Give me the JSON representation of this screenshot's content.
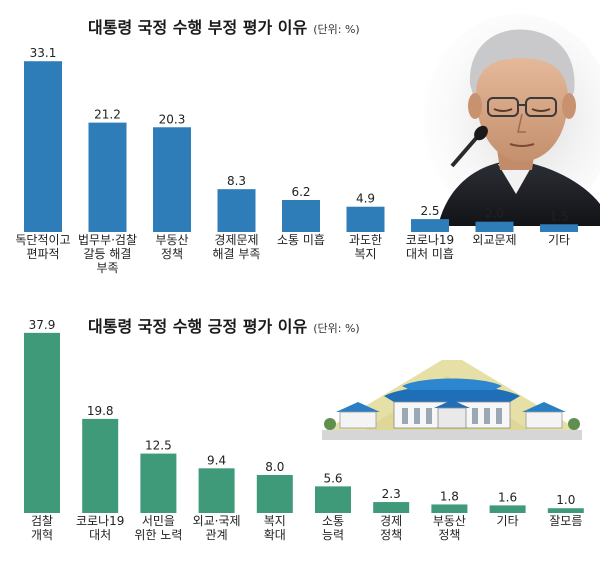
{
  "chart_data": [
    {
      "type": "bar",
      "title": "대통령 국정 수행 부정 평가 이유",
      "unit": "(단위: %)",
      "color": "#2e7cb8",
      "categories": [
        [
          "독단적이고",
          "편파적"
        ],
        [
          "법무부·검찰",
          "갈등 해결",
          "부족"
        ],
        [
          "부동산",
          "정책"
        ],
        [
          "경제문제",
          "해결 부족"
        ],
        [
          "소통 미흡"
        ],
        [
          "과도한",
          "복지"
        ],
        [
          "코로나19",
          "대처 미흡"
        ],
        [
          "외교문제"
        ],
        [
          "기타"
        ]
      ],
      "values": [
        33.1,
        21.2,
        20.3,
        8.3,
        6.2,
        4.9,
        2.5,
        2.0,
        1.5
      ],
      "value_labels": [
        "33.1",
        "21.2",
        "20.3",
        "8.3",
        "6.2",
        "4.9",
        "2.5",
        "2.0",
        "1.5"
      ],
      "ylim": [
        0,
        34.5
      ]
    },
    {
      "type": "bar",
      "title": "대통령 국정 수행 긍정 평가 이유",
      "unit": "(단위: %)",
      "color": "#3f9a7a",
      "categories": [
        [
          "검찰",
          "개혁"
        ],
        [
          "코로나19",
          "대처"
        ],
        [
          "서민을",
          "위한 노력"
        ],
        [
          "외교·국제",
          "관계"
        ],
        [
          "복지",
          "확대"
        ],
        [
          "소통",
          "능력"
        ],
        [
          "경제",
          "정책"
        ],
        [
          "부동산",
          "정책"
        ],
        [
          "기타"
        ],
        [
          "잘모름"
        ]
      ],
      "values": [
        37.9,
        19.8,
        12.5,
        9.4,
        8.0,
        5.6,
        2.3,
        1.8,
        1.6,
        1.0
      ],
      "value_labels": [
        "37.9",
        "19.8",
        "12.5",
        "9.4",
        "8.0",
        "5.6",
        "2.3",
        "1.8",
        "1.6",
        "1.0"
      ],
      "ylim": [
        0,
        38.5
      ]
    }
  ],
  "illustrations": {
    "portrait": "president-portrait-photo",
    "building": "blue-house-illustration"
  }
}
